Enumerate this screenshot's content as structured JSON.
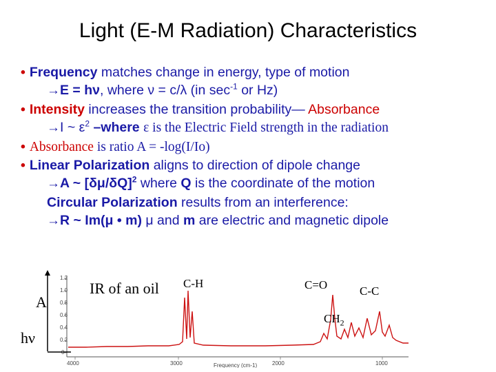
{
  "slide": {
    "title": "Light (E-M Radiation) Characteristics"
  },
  "bullets": [
    {
      "bullet": "•",
      "term": "Frequency",
      "rest": " matches change in energy, type of motion"
    },
    {
      "arrow": "→",
      "formula": "E = hν",
      "mid": ",  where  ν = c/λ   (in sec",
      "sup": "-1",
      "end": " or Hz)"
    },
    {
      "bullet": "•",
      "term": "Intensity",
      "rest": " increases the transition probability— ",
      "tail": "Absorbance"
    },
    {
      "arrow": "→",
      "formula": "I ~ ε",
      "sup": "2",
      "mid": " –where ",
      "symbol": "ε",
      "end": " is the Electric Field strength in the radiation"
    },
    {
      "bullet": "•",
      "term": "Absorbance",
      "rest": " is ratio A = -log(I/Io)"
    },
    {
      "bullet": "•",
      "term": "Linear Polarization",
      "rest": " aligns to direction of dipole change"
    },
    {
      "arrow": "→",
      "formula": "A ~ [δμ/δQ]",
      "sup": "2",
      "mid": "  where ",
      "q": "Q",
      "end": " is the coordinate of the motion"
    },
    {
      "term": "Circular Polarization",
      "rest": " results from an interference:"
    },
    {
      "arrow": "→",
      "formula": "R ~ Im(μ • m)",
      "mid": "  μ and ",
      "q": "m",
      "end": " are electric and magnetic dipole"
    }
  ],
  "spectrum": {
    "axis_y": "A",
    "axis_x": "hν",
    "caption": "IR of an oil",
    "peaks": {
      "ch": "C-H",
      "co": "C=O",
      "ch2": "CH",
      "ch2_sub": "2",
      "cc": "C-C"
    },
    "x_axis_label": "Frequency (cm-1)",
    "ticks": [
      "4000",
      "3000",
      "2000",
      "1000"
    ],
    "y_ticks": [
      "1.2",
      "1.0",
      "0.8",
      "0.6",
      "0.4",
      "0.2",
      "0"
    ]
  }
}
